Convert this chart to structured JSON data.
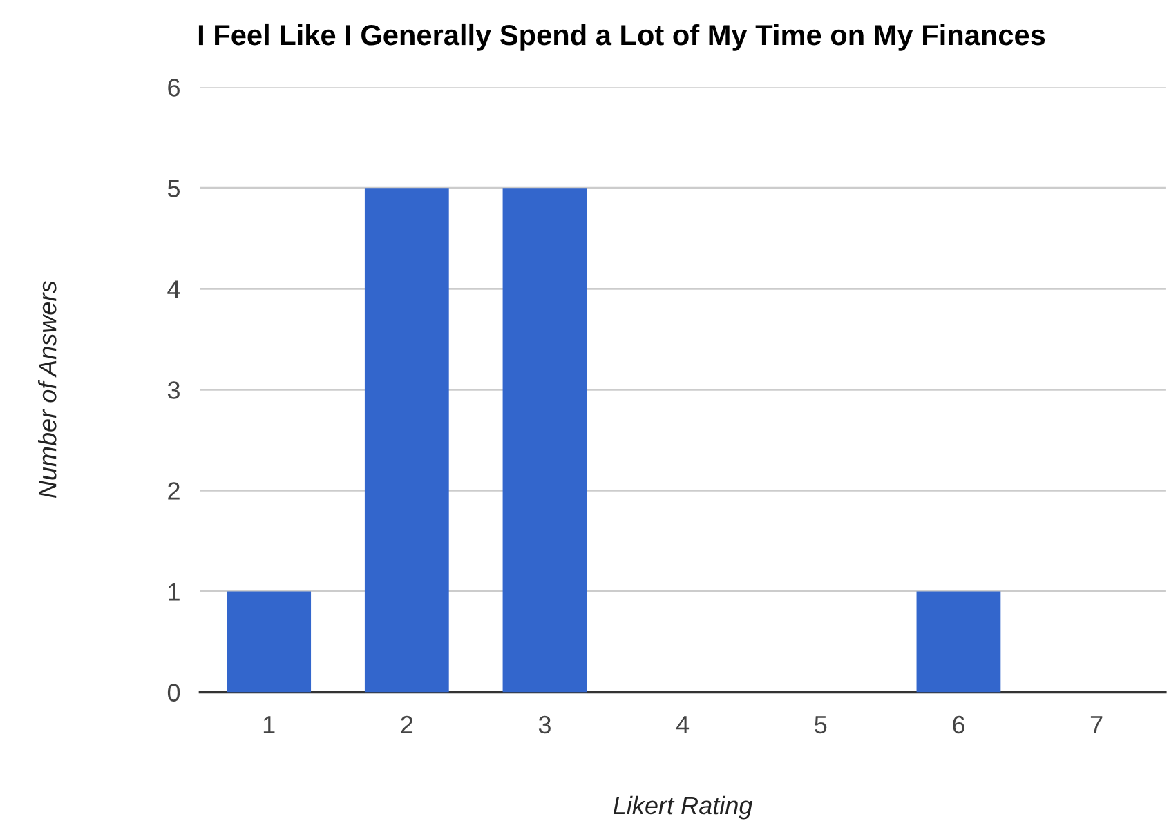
{
  "chart_data": {
    "type": "bar",
    "title": "I Feel Like I Generally Spend a Lot of My Time on My Finances",
    "xlabel": "Likert Rating",
    "ylabel": "Number of Answers",
    "categories": [
      "1",
      "2",
      "3",
      "4",
      "5",
      "6",
      "7"
    ],
    "values": [
      1,
      5,
      5,
      0,
      0,
      1,
      0
    ],
    "color": "#3366cc",
    "ylim": [
      0,
      6
    ],
    "yticks": [
      0,
      1,
      2,
      3,
      4,
      5,
      6
    ],
    "grid": "y",
    "legend": false
  }
}
